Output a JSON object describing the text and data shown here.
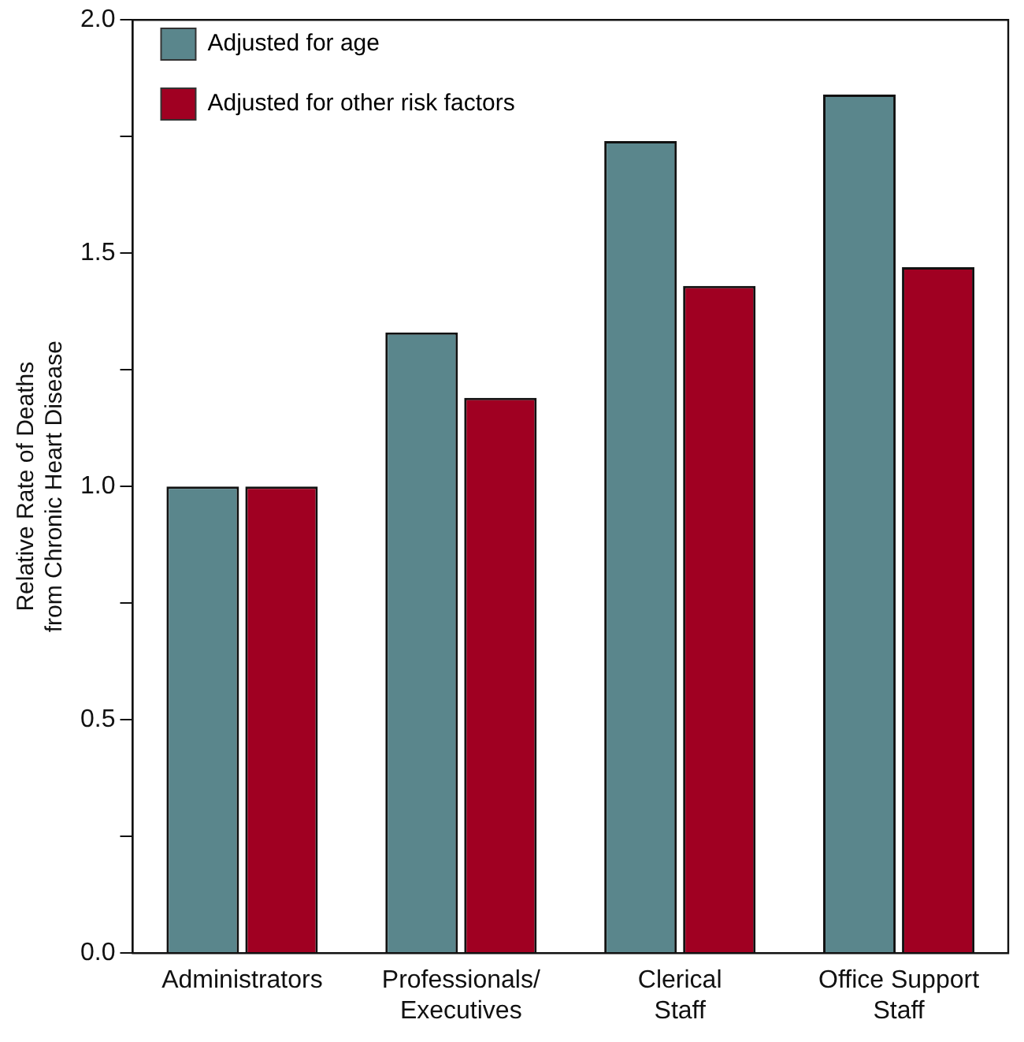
{
  "chart_data": {
    "type": "bar",
    "ylabel": "Relative Rate of Deaths\nfrom Chronic Heart Disease",
    "categories": [
      "Administrators",
      "Professionals/\nExecutives",
      "Clerical\nStaff",
      "Office Support\nStaff"
    ],
    "series": [
      {
        "name": "Adjusted for age",
        "color": "#5a868c",
        "values": [
          1.0,
          1.33,
          1.74,
          1.84
        ]
      },
      {
        "name": "Adjusted for other\nrisk factors",
        "color": "#a00022",
        "values": [
          1.0,
          1.19,
          1.43,
          1.47
        ]
      }
    ],
    "ylim": [
      0,
      2
    ],
    "yticks": [
      {
        "value": 0,
        "label": "0.0"
      },
      {
        "value": 0.25,
        "label": null
      },
      0.5,
      {
        "value": 0.75,
        "label": null
      },
      {
        "value": 1,
        "label": "1.0"
      },
      {
        "value": 1.25,
        "label": null
      },
      1.5,
      {
        "value": 1.75,
        "label": null
      },
      {
        "value": 2,
        "label": "2.0"
      }
    ],
    "grid": false,
    "legend": "top left"
  }
}
